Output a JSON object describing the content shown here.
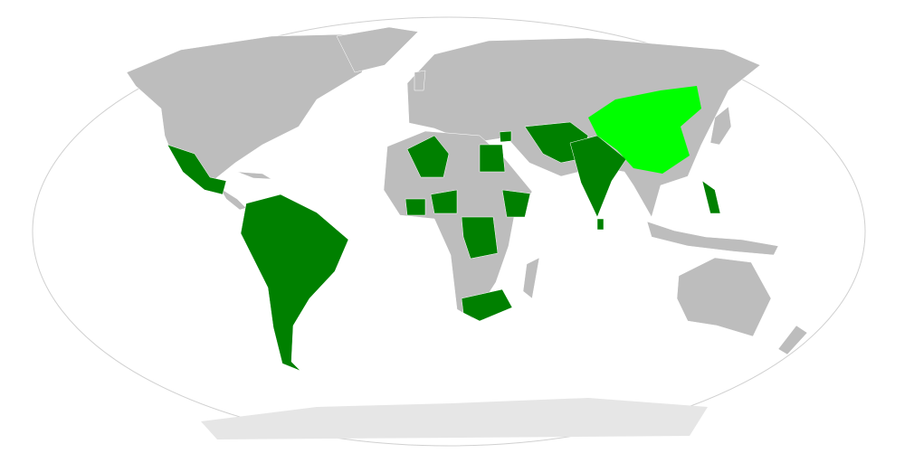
{
  "map": {
    "projection": "robinson",
    "colors": {
      "ocean": "#ffffff",
      "border": "#d0d0d0",
      "land_default": "#bdbdbd",
      "antarctica": "#e6e6e6",
      "primary_highlight": "#00ff00",
      "secondary_highlight": "#008000",
      "country_borders": "#ffffff"
    }
  }
}
